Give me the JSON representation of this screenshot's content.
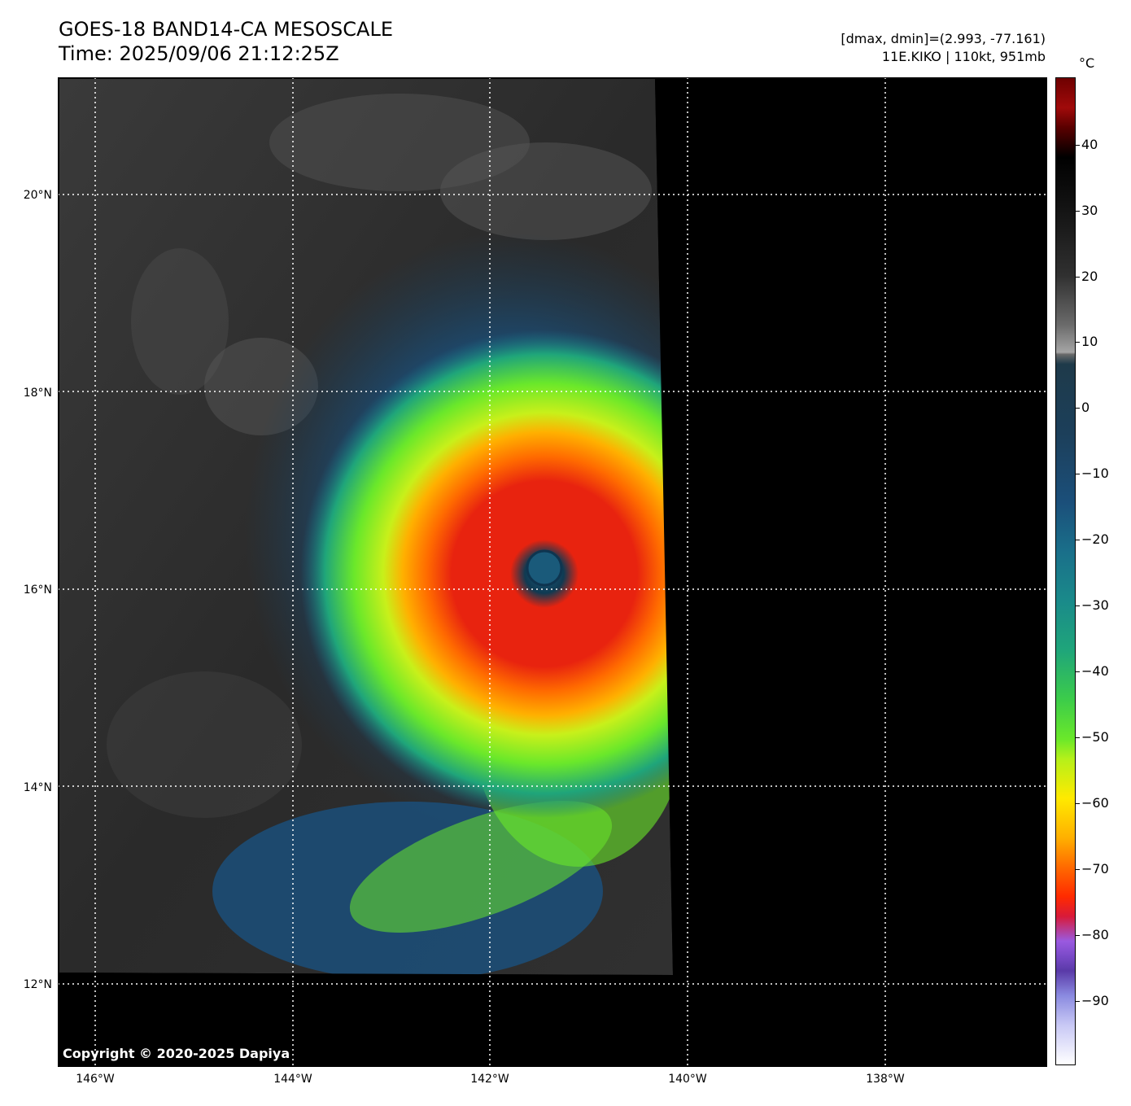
{
  "header": {
    "title_line1": "GOES-18 BAND14-CA MESOSCALE",
    "title_line2": "Time: 2025/09/06 21:12:25Z",
    "stats_line": "[dmax, dmin]=(2.993, -77.161)",
    "storm_line": "11E.KIKO | 110kt, 951mb"
  },
  "map": {
    "lat_labels": [
      "20°N",
      "18°N",
      "16°N",
      "14°N",
      "12°N"
    ],
    "lon_labels": [
      "146°W",
      "144°W",
      "142°W",
      "140°W",
      "138°W"
    ],
    "copyright": "Copyright © 2020-2025 Dapiya"
  },
  "colorbar": {
    "unit": "°C",
    "ticks": [
      "40",
      "30",
      "20",
      "10",
      "0",
      "−10",
      "−20",
      "−30",
      "−40",
      "−50",
      "−60",
      "−70",
      "−80",
      "−90"
    ]
  },
  "colors": {
    "eye": "#1a5a7a",
    "eyewall": "#e8230f",
    "ring": "#ff8c00",
    "background": "#000000"
  }
}
